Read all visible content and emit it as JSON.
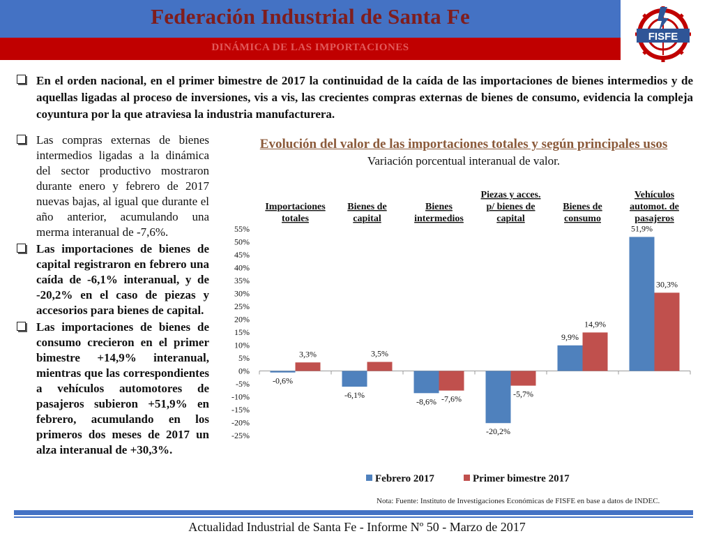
{
  "header": {
    "title": "Federación Industrial de Santa Fe",
    "subtitle": "DINÁMICA DE LAS IMPORTACIONES",
    "logo_text": "FISFE"
  },
  "intro": "En el orden nacional, en el primer bimestre de 2017 la continuidad de la caída de las importaciones de bienes intermedios y de aquellas ligadas al proceso de inversiones, vis a vis, las crecientes compras externas de bienes de consumo, evidencia la compleja coyuntura por la que atraviesa la industria manufacturera.",
  "side": [
    {
      "text": "Las compras externas de bienes intermedios ligadas a la dinámica del sector productivo mostraron durante enero y febrero de 2017 nuevas bajas, al igual que durante el año anterior, acumulando una merma interanual de -7,6%."
    },
    {
      "text": "Las importaciones de bienes de capital registraron en febrero una caída de -6,1% interanual, y de -20,2% en el caso de piezas y accesorios para bienes de capital."
    },
    {
      "text": "Las importaciones de bienes de consumo crecieron en el primer bimestre +14,9% interanual, mientras que las correspondientes a vehículos automotores de pasajeros subieron +51,9% en febrero, acumulando en los primeros dos meses de 2017 un alza interanual de +30,3%."
    }
  ],
  "chart_data": {
    "type": "bar",
    "title": "Evolución del valor de las importaciones totales y según principales usos",
    "subtitle": "Variación porcentual interanual de valor.",
    "categories": [
      [
        "Importaciones",
        "totales"
      ],
      [
        "Bienes de",
        "capital"
      ],
      [
        "Bienes",
        "intermedios"
      ],
      [
        "Piezas y acces.",
        "p/ bienes de",
        "capital"
      ],
      [
        "Bienes de",
        "consumo"
      ],
      [
        "Vehículos",
        "automot. de",
        "pasajeros"
      ]
    ],
    "series": [
      {
        "name": "Febrero 2017",
        "color": "#4f81bd",
        "values": [
          -0.6,
          -6.1,
          -8.6,
          -20.2,
          9.9,
          51.9
        ],
        "labels": [
          "-0,6%",
          "-6,1%",
          "-8,6%",
          "-20,2%",
          "9,9%",
          "51,9%"
        ]
      },
      {
        "name": "Primer bimestre 2017",
        "color": "#c0504d",
        "values": [
          3.3,
          3.5,
          -7.6,
          -5.7,
          14.9,
          30.3
        ],
        "labels": [
          "3,3%",
          "3,5%",
          "-7,6%",
          "-5,7%",
          "14,9%",
          "30,3%"
        ]
      }
    ],
    "ylim": [
      -25,
      55
    ],
    "yticks": [
      "-25%",
      "-20%",
      "-15%",
      "-10%",
      "-5%",
      "0%",
      "5%",
      "10%",
      "15%",
      "20%",
      "25%",
      "30%",
      "35%",
      "40%",
      "45%",
      "50%",
      "55%"
    ],
    "legend": "bottom",
    "grid": false
  },
  "note": "Nota: Fuente: Instituto de Investigaciones Económicas de  FISFE en base a datos de INDEC.",
  "footer": "Actualidad Industrial de Santa Fe - Informe Nº 50 - Marzo de 2017"
}
